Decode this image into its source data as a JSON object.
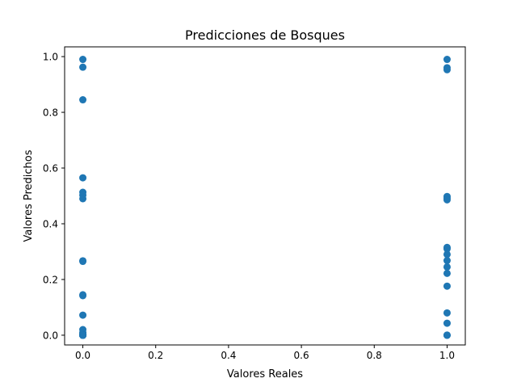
{
  "chart_data": {
    "type": "scatter",
    "title": "Predicciones de Bosques",
    "xlabel": "Valores Reales",
    "ylabel": "Valores Predichos",
    "xlim": [
      -0.05,
      1.05
    ],
    "ylim": [
      -0.035,
      1.035
    ],
    "xticks": [
      "0.0",
      "0.2",
      "0.4",
      "0.6",
      "0.8",
      "1.0"
    ],
    "yticks": [
      "0.0",
      "0.2",
      "0.4",
      "0.6",
      "0.8",
      "1.0"
    ],
    "grid": false,
    "legend": "none",
    "point_color": "#1f77b4",
    "series": [
      {
        "x": [
          0,
          0,
          0,
          0,
          0,
          0,
          0,
          0,
          0,
          0,
          0,
          0,
          0,
          0,
          0,
          0,
          0,
          0,
          0,
          0,
          0,
          0,
          0,
          0,
          0,
          0,
          0,
          0,
          0,
          0,
          0,
          0,
          0,
          0,
          0
        ],
        "y": [
          0.99,
          0.962,
          0.845,
          0.565,
          0.513,
          0.503,
          0.49,
          0.267,
          0.265,
          0.145,
          0.142,
          0.072,
          0.02,
          0.01,
          0.005,
          0.003,
          0.002,
          0.001,
          0.001,
          0.0,
          0.0,
          0.0,
          0.0,
          0.0,
          0.0,
          0.0,
          0.0,
          0.0,
          0.0,
          0.0,
          0.0,
          0.0,
          0.0,
          0.0,
          0.0
        ]
      },
      {
        "x": [
          1,
          1,
          1,
          1,
          1,
          1,
          1,
          1,
          1,
          1,
          1,
          1,
          1,
          1,
          1,
          1,
          1,
          1
        ],
        "y": [
          0.99,
          0.96,
          0.953,
          0.498,
          0.492,
          0.486,
          0.315,
          0.31,
          0.29,
          0.268,
          0.245,
          0.222,
          0.176,
          0.08,
          0.043,
          0.0,
          0.0,
          0.0
        ]
      }
    ]
  }
}
